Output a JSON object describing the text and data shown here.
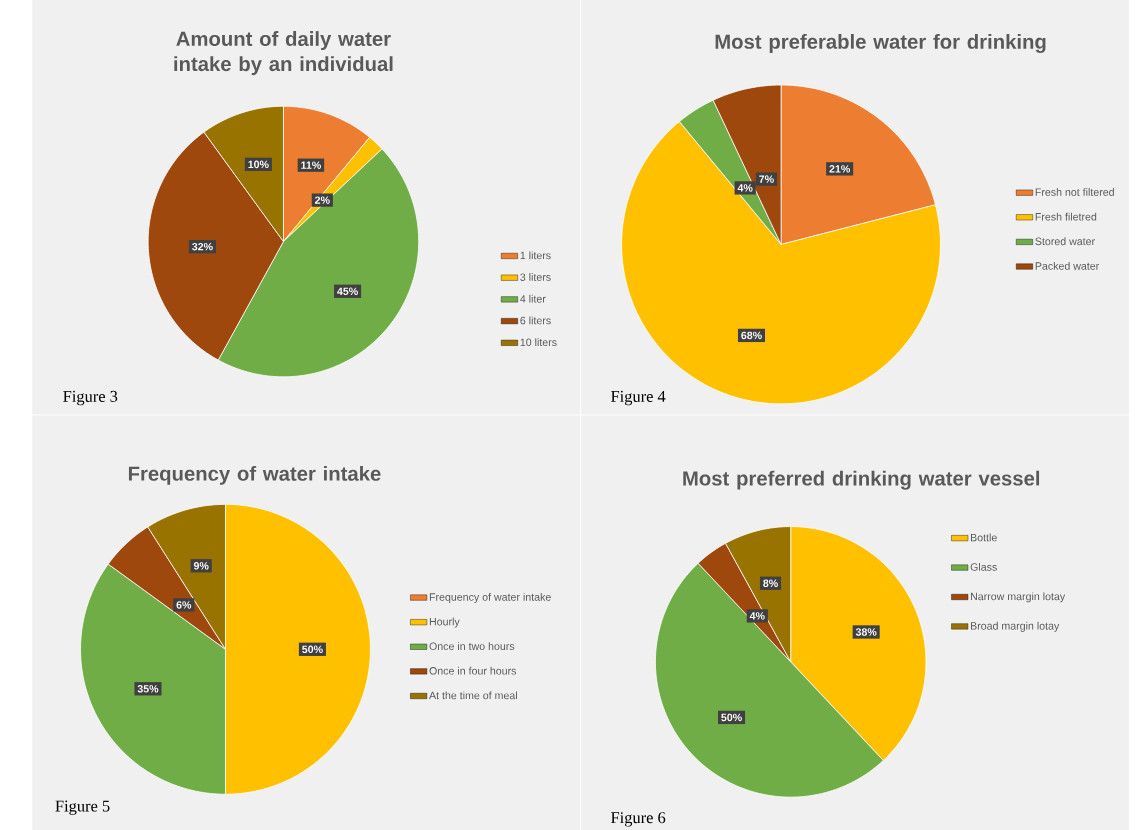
{
  "chart_data": [
    {
      "type": "pie",
      "title": "Amount of daily water intake by an individual",
      "categories": [
        "1 liters",
        "3 liters",
        "4 liter",
        "6 liters",
        "10 liters"
      ],
      "values": [
        11,
        2,
        45,
        32,
        10
      ],
      "value_labels": [
        "11%",
        "2%",
        "45%",
        "32%",
        "10%"
      ],
      "colors": [
        "#ed7d31",
        "#ffc000",
        "#70ad47",
        "#9e480e",
        "#997300"
      ],
      "legend": "right",
      "annotations": [
        "Figure 3"
      ]
    },
    {
      "type": "pie",
      "title": "Most preferable water for drinking",
      "categories": [
        "Fresh not filtered",
        "Fresh filetred",
        "Stored water",
        "Packed water"
      ],
      "values": [
        21,
        68,
        4,
        7
      ],
      "value_labels": [
        "21%",
        "68%",
        "4%",
        "7%"
      ],
      "colors": [
        "#ed7d31",
        "#ffc000",
        "#70ad47",
        "#9e480e"
      ],
      "legend": "right",
      "annotations": [
        "Figure 4"
      ]
    },
    {
      "type": "pie",
      "title": "Frequency of water intake",
      "categories": [
        "Frequency of water intake",
        "Hourly",
        "Once in two hours",
        "Once in four hours",
        "At the time of meal"
      ],
      "values": [
        0,
        50,
        35,
        6,
        9
      ],
      "value_labels": [
        null,
        "50%",
        "35%",
        "6%",
        "9%"
      ],
      "colors": [
        "#ed7d31",
        "#ffc000",
        "#70ad47",
        "#9e480e",
        "#997300"
      ],
      "legend": "right",
      "annotations": [
        "Figure 5"
      ]
    },
    {
      "type": "pie",
      "title": "Most preferred drinking water vessel",
      "categories": [
        "Bottle",
        "Glass",
        "Narrow margin lotay",
        "Broad margin lotay"
      ],
      "values": [
        38,
        50,
        4,
        8
      ],
      "value_labels": [
        "38%",
        "50%",
        "4%",
        "8%"
      ],
      "colors": [
        "#ffc000",
        "#70ad47",
        "#9e480e",
        "#997300"
      ],
      "legend": "right",
      "annotations": [
        "Figure 6"
      ]
    }
  ]
}
